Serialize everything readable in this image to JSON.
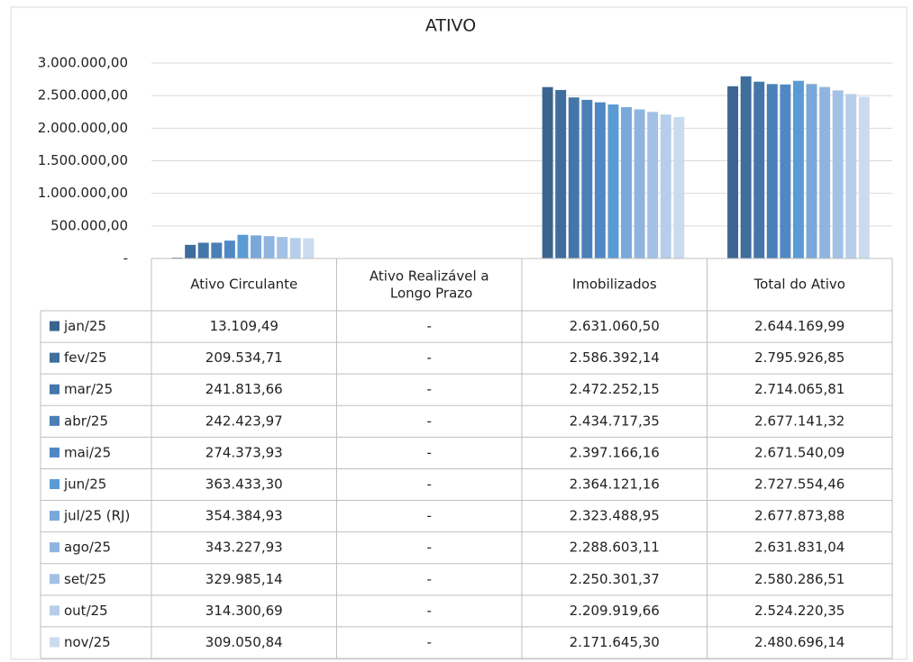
{
  "chart_data": {
    "type": "bar",
    "title": "ATIVO",
    "categories": [
      "Ativo Circulante",
      "Ativo Realizável a Longo Prazo",
      "Imobilizados",
      "Total do Ativo"
    ],
    "ylim": [
      0,
      3000000
    ],
    "yticks": [
      {
        "value": 0,
        "label": "-"
      },
      {
        "value": 500000,
        "label": "500.000,00"
      },
      {
        "value": 1000000,
        "label": "1.000.000,00"
      },
      {
        "value": 1500000,
        "label": "1.500.000,00"
      },
      {
        "value": 2000000,
        "label": "2.000.000,00"
      },
      {
        "value": 2500000,
        "label": "2.500.000,00"
      },
      {
        "value": 3000000,
        "label": "3.000.000,00"
      }
    ],
    "grid": true,
    "series": [
      {
        "name": "jan/25",
        "color": "#3b6590",
        "values": [
          13109.49,
          null,
          2631060.5,
          2644169.99
        ],
        "value_labels": [
          "13.109,49",
          "-",
          "2.631.060,50",
          "2.644.169,99"
        ]
      },
      {
        "name": "fev/25",
        "color": "#3f6d9c",
        "values": [
          209534.71,
          null,
          2586392.14,
          2795926.85
        ],
        "value_labels": [
          "209.534,71",
          "-",
          "2.586.392,14",
          "2.795.926,85"
        ]
      },
      {
        "name": "mar/25",
        "color": "#4576aa",
        "values": [
          241813.66,
          null,
          2472252.15,
          2714065.81
        ],
        "value_labels": [
          "241.813,66",
          "-",
          "2.472.252,15",
          "2.714.065,81"
        ]
      },
      {
        "name": "abr/25",
        "color": "#4a7fb7",
        "values": [
          242423.97,
          null,
          2434717.35,
          2677141.32
        ],
        "value_labels": [
          "242.423,97",
          "-",
          "2.434.717,35",
          "2.677.141,32"
        ]
      },
      {
        "name": "mai/25",
        "color": "#5088c4",
        "values": [
          274373.93,
          null,
          2397166.16,
          2671540.09
        ],
        "value_labels": [
          "274.373,93",
          "-",
          "2.397.166,16",
          "2.671.540,09"
        ]
      },
      {
        "name": "jun/25",
        "color": "#5b9bd5",
        "values": [
          363433.3,
          null,
          2364121.16,
          2727554.46
        ],
        "value_labels": [
          "363.433,30",
          "-",
          "2.364.121,16",
          "2.727.554,46"
        ]
      },
      {
        "name": "jul/25 (RJ)",
        "color": "#7aa8da",
        "values": [
          354384.93,
          null,
          2323488.95,
          2677873.88
        ],
        "value_labels": [
          "354.384,93",
          "-",
          "2.323.488,95",
          "2.677.873,88"
        ]
      },
      {
        "name": "ago/25",
        "color": "#8fb4df",
        "values": [
          343227.93,
          null,
          2288603.11,
          2631831.04
        ],
        "value_labels": [
          "343.227,93",
          "-",
          "2.288.603,11",
          "2.631.831,04"
        ]
      },
      {
        "name": "set/25",
        "color": "#a3c1e5",
        "values": [
          329985.14,
          null,
          2250301.37,
          2580286.51
        ],
        "value_labels": [
          "329.985,14",
          "-",
          "2.250.301,37",
          "2.580.286,51"
        ]
      },
      {
        "name": "out/25",
        "color": "#b6ceea",
        "values": [
          314300.69,
          null,
          2209919.66,
          2524220.35
        ],
        "value_labels": [
          "314.300,69",
          "-",
          "2.209.919,66",
          "2.524.220,35"
        ]
      },
      {
        "name": "nov/25",
        "color": "#cbdbef",
        "values": [
          309050.84,
          null,
          2171645.3,
          2480696.14
        ],
        "value_labels": [
          "309.050,84",
          "-",
          "2.171.645,30",
          "2.480.696,14"
        ]
      }
    ]
  }
}
